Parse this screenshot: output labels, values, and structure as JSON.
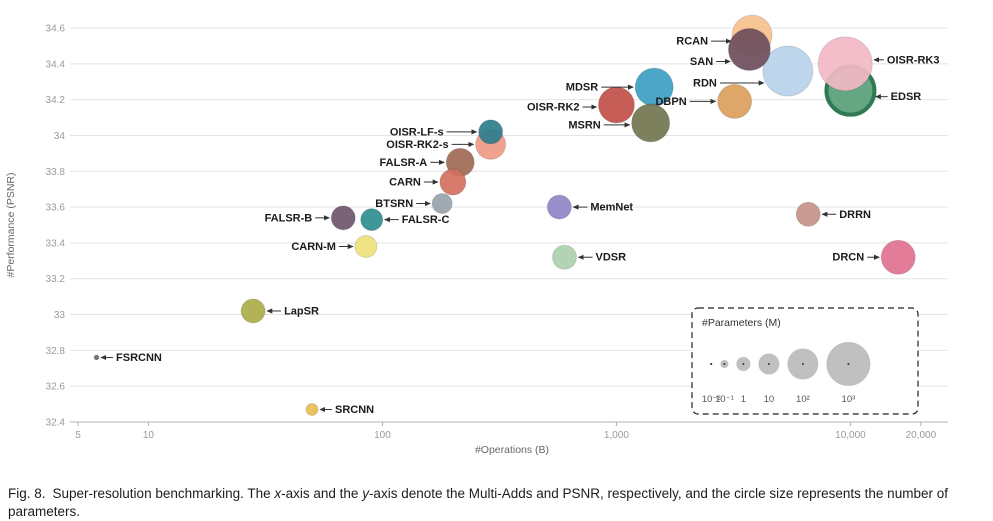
{
  "figure": {
    "caption": {
      "fig_label": "Fig. 8.",
      "segments": [
        {
          "text": "Super-resolution benchmarking. The "
        },
        {
          "text": "x",
          "italic": true
        },
        {
          "text": "-axis and the "
        },
        {
          "text": "y",
          "italic": true
        },
        {
          "text": "-axis denote the Multi-Adds and PSNR, respectively, and the circle size represents the number of parameters."
        }
      ]
    }
  },
  "chart_data": {
    "type": "scatter",
    "title": "Super-resolution benchmarking",
    "xlabel": "#Operations (B)",
    "ylabel": "#Performance (PSNR)",
    "x_scale": "log",
    "xlim": [
      5,
      22000
    ],
    "ylim": [
      32.4,
      34.6
    ],
    "y_tick_step": 0.2,
    "grid": "horizontal",
    "legend_position": "bottom-right",
    "x_ticks": [
      {
        "v": 5,
        "label": "5"
      },
      {
        "v": 10,
        "label": "10"
      },
      {
        "v": 100,
        "label": "100"
      },
      {
        "v": 1000,
        "label": "1,000"
      },
      {
        "v": 10000,
        "label": "10,000"
      },
      {
        "v": 20000,
        "label": "20,000"
      }
    ],
    "points": [
      {
        "name": "RDN",
        "ops": 5400,
        "psnr": 34.36,
        "r": 25,
        "color": "#b9d2ea",
        "side": "left",
        "alen": 44,
        "dy": 12
      },
      {
        "name": "RCAN",
        "ops": 3800,
        "psnr": 34.56,
        "r": 20,
        "color": "#f7c08e",
        "side": "left",
        "alen": 20,
        "dy": 6
      },
      {
        "name": "SAN",
        "ops": 3700,
        "psnr": 34.48,
        "r": 21,
        "color": "#6d4d5c",
        "side": "left",
        "alen": 14,
        "dy": 12
      },
      {
        "name": "EDSR",
        "ops": 10000,
        "psnr": 34.25,
        "r": 24,
        "color": "#57a077",
        "stroke": "#2f7a52",
        "sw": 4,
        "side": "right",
        "alen": 12,
        "dy": 6
      },
      {
        "name": "OISR-RK3",
        "ops": 9500,
        "psnr": 34.4,
        "r": 27,
        "color": "#f2b8c6",
        "side": "right",
        "alen": 10,
        "dy": -4
      },
      {
        "name": "DBPN",
        "ops": 3200,
        "psnr": 34.19,
        "r": 17,
        "color": "#dba05c",
        "side": "left",
        "alen": 26,
        "dy": 0
      },
      {
        "name": "MDSR",
        "ops": 1450,
        "psnr": 34.27,
        "r": 19,
        "color": "#3d9ec2",
        "side": "left",
        "alen": 32,
        "dy": 0
      },
      {
        "name": "MSRN",
        "ops": 1400,
        "psnr": 34.07,
        "r": 19,
        "color": "#72754f",
        "side": "left",
        "alen": 26,
        "dy": 2
      },
      {
        "name": "OISR-RK2",
        "ops": 1000,
        "psnr": 34.17,
        "r": 18,
        "color": "#c14f49",
        "side": "left",
        "alen": 14,
        "dy": 2
      },
      {
        "name": "OISR-RK2-s",
        "ops": 290,
        "psnr": 33.95,
        "r": 15,
        "color": "#f09a84",
        "side": "left",
        "alen": 22,
        "dy": 0
      },
      {
        "name": "OISR-LF-s",
        "ops": 290,
        "psnr": 34.02,
        "r": 12,
        "color": "#2e7d8c",
        "side": "left",
        "alen": 30,
        "dy": 0
      },
      {
        "name": "FALSR-A",
        "ops": 215,
        "psnr": 33.85,
        "r": 14,
        "color": "#a06a56",
        "side": "left",
        "alen": 14,
        "dy": 0
      },
      {
        "name": "CARN",
        "ops": 200,
        "psnr": 33.74,
        "r": 13,
        "color": "#d3705e",
        "side": "left",
        "alen": 14,
        "dy": 0
      },
      {
        "name": "BTSRN",
        "ops": 180,
        "psnr": 33.62,
        "r": 10,
        "color": "#98a3ab",
        "side": "left",
        "alen": 14,
        "dy": 0
      },
      {
        "name": "FALSR-B",
        "ops": 68,
        "psnr": 33.54,
        "r": 12,
        "color": "#6f566b",
        "side": "left",
        "alen": 14,
        "dy": 0
      },
      {
        "name": "FALSR-C",
        "ops": 90,
        "psnr": 33.53,
        "r": 11,
        "color": "#2f8e8e",
        "side": "right",
        "alen": 14,
        "dy": 0
      },
      {
        "name": "CARN-M",
        "ops": 85,
        "psnr": 33.38,
        "r": 11,
        "color": "#eee27a",
        "side": "left",
        "alen": 14,
        "dy": 0
      },
      {
        "name": "MemNet",
        "ops": 570,
        "psnr": 33.6,
        "r": 12,
        "color": "#9083c6",
        "side": "right",
        "alen": 14,
        "dy": 0
      },
      {
        "name": "VDSR",
        "ops": 600,
        "psnr": 33.32,
        "r": 12,
        "color": "#abd0ab",
        "side": "right",
        "alen": 14,
        "dy": 0
      },
      {
        "name": "LapSR",
        "ops": 28,
        "psnr": 33.02,
        "r": 12,
        "color": "#abac48",
        "side": "right",
        "alen": 14,
        "dy": 0
      },
      {
        "name": "FSRCNN",
        "ops": 6,
        "psnr": 32.76,
        "r": 2.5,
        "color": "#6b6b6b",
        "side": "right",
        "alen": 12,
        "dy": 0
      },
      {
        "name": "SRCNN",
        "ops": 50,
        "psnr": 32.47,
        "r": 6,
        "color": "#e9bd52",
        "side": "right",
        "alen": 12,
        "dy": 0
      },
      {
        "name": "DRRN",
        "ops": 6600,
        "psnr": 33.56,
        "r": 12,
        "color": "#c49289",
        "side": "right",
        "alen": 14,
        "dy": 0
      },
      {
        "name": "DRCN",
        "ops": 16000,
        "psnr": 33.32,
        "r": 17,
        "color": "#e1718f",
        "side": "left",
        "alen": 12,
        "dy": 0
      }
    ],
    "legend": {
      "title": "#Parameters (M)",
      "items": [
        {
          "label": "10⁻²",
          "r": 1.2
        },
        {
          "label": "10⁻¹",
          "r": 4
        },
        {
          "label": "1",
          "r": 7
        },
        {
          "label": "10",
          "r": 10.5
        },
        {
          "label": "10²",
          "r": 15.5
        },
        {
          "label": "10³",
          "r": 22
        }
      ]
    }
  }
}
